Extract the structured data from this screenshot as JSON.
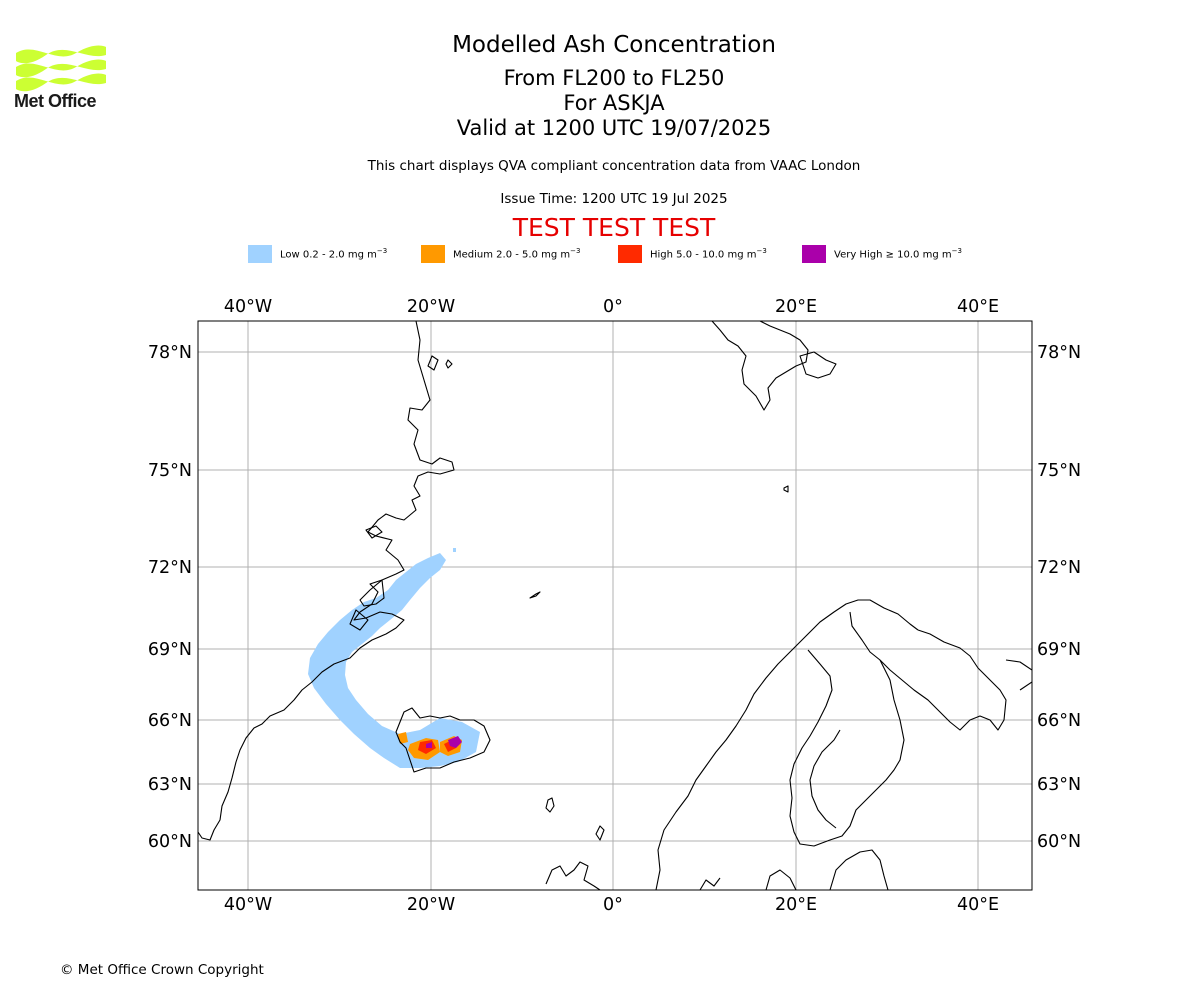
{
  "logo": {
    "text": "Met Office",
    "color": "#ccff33"
  },
  "title": {
    "line1": "Modelled Ash Concentration",
    "line2": "From FL200 to FL250",
    "line3": "For ASKJA",
    "line4": "Valid at 1200 UTC 19/07/2025"
  },
  "description": "This chart displays QVA compliant concentration data from VAAC London",
  "issue_time": "Issue Time: 1200 UTC 19 Jul 2025",
  "test_banner": "TEST TEST TEST",
  "test_color": "#e60000",
  "legend": [
    {
      "label": "Low 0.2 - 2.0 mg m",
      "color": "#a0d2ff"
    },
    {
      "label": "Medium 2.0 - 5.0 mg m",
      "color": "#ff9900"
    },
    {
      "label": "High 5.0 - 10.0 mg m",
      "color": "#ff2a00"
    },
    {
      "label": "Very High ≥ 10.0 mg m",
      "color": "#aa00aa"
    }
  ],
  "legend_unit_exponent": "−3",
  "map": {
    "lon_labels": [
      "40°W",
      "20°W",
      "0°",
      "20°E",
      "40°E"
    ],
    "lat_labels": [
      "78°N",
      "75°N",
      "72°N",
      "69°N",
      "66°N",
      "63°N",
      "60°N"
    ],
    "coastline_color": "#000000",
    "grid_color": "#b0b0b0"
  },
  "copyright": "© Met Office Crown Copyright"
}
